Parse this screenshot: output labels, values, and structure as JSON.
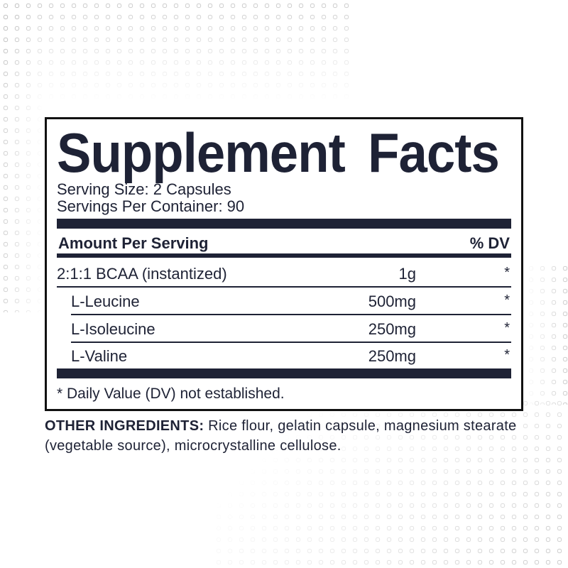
{
  "label": {
    "title": "Supplement Facts",
    "serving_size": "Serving Size: 2 Capsules",
    "servings_per_container": "Servings Per Container: 90",
    "amount_header": "Amount Per Serving",
    "dv_header": "% DV",
    "rows": [
      {
        "name": "2:1:1 BCAA (instantized)",
        "amount": "1g",
        "dv": "*"
      },
      {
        "name": "L-Leucine",
        "amount": "500mg",
        "dv": "*"
      },
      {
        "name": "L-Isoleucine",
        "amount": "250mg",
        "dv": "*"
      },
      {
        "name": "L-Valine",
        "amount": "250mg",
        "dv": "*"
      }
    ],
    "footnote": "* Daily Value (DV) not established."
  },
  "other_ingredients": {
    "heading": "OTHER INGREDIENTS:",
    "text": " Rice flour, gelatin capsule, magnesium stearate (vegetable source), microcrystalline cellulose."
  },
  "colors": {
    "text": "#1e2235",
    "border": "#111111"
  }
}
